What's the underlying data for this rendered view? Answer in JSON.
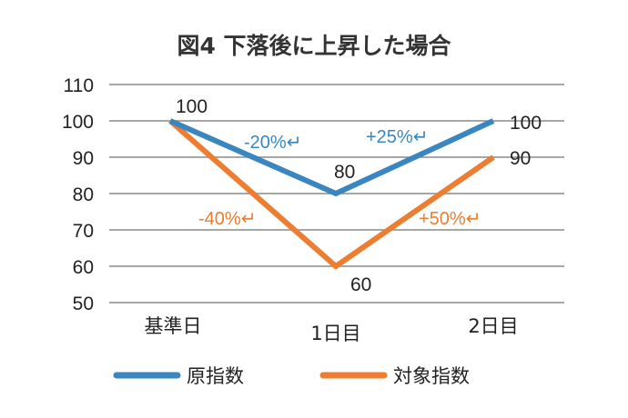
{
  "chart_data": {
    "type": "line",
    "title": "図4 下落後に上昇した場合",
    "categories": [
      "基準日",
      "1日目",
      "2日目"
    ],
    "ylim": [
      50,
      110
    ],
    "yticks": [
      50,
      60,
      70,
      80,
      90,
      100,
      110
    ],
    "grid": true,
    "legend_position": "bottom",
    "series": [
      {
        "name": "原指数",
        "color": "#3a86c0",
        "values": [
          100,
          80,
          100
        ],
        "labels": [
          "100",
          "80",
          "100"
        ],
        "changes": [
          "-20%↵",
          "+25%↵"
        ]
      },
      {
        "name": "対象指数",
        "color": "#ec7d31",
        "values": [
          100,
          60,
          90
        ],
        "labels": [
          "",
          "60",
          "90"
        ],
        "changes": [
          "-40%↵",
          "+50%↵"
        ]
      }
    ]
  }
}
